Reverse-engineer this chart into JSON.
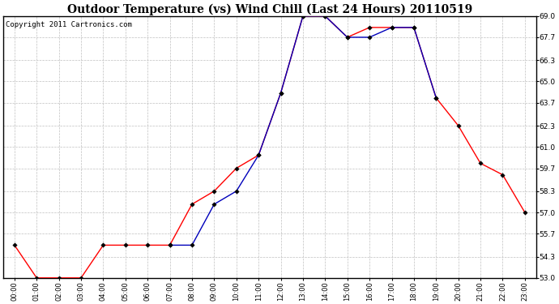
{
  "title": "Outdoor Temperature (vs) Wind Chill (Last 24 Hours) 20110519",
  "copyright_text": "Copyright 2011 Cartronics.com",
  "x_labels": [
    "00:00",
    "01:00",
    "02:00",
    "03:00",
    "04:00",
    "05:00",
    "06:00",
    "07:00",
    "08:00",
    "09:00",
    "10:00",
    "11:00",
    "12:00",
    "13:00",
    "14:00",
    "15:00",
    "16:00",
    "17:00",
    "18:00",
    "19:00",
    "20:00",
    "21:00",
    "22:00",
    "23:00"
  ],
  "y_ticks": [
    53.0,
    54.3,
    55.7,
    57.0,
    58.3,
    59.7,
    61.0,
    62.3,
    63.7,
    65.0,
    66.3,
    67.7,
    69.0
  ],
  "y_min": 53.0,
  "y_max": 69.0,
  "outdoor_temp": [
    55.0,
    53.0,
    53.0,
    53.0,
    55.0,
    55.0,
    55.0,
    55.0,
    57.5,
    58.3,
    59.7,
    60.5,
    64.3,
    69.0,
    69.0,
    67.7,
    68.3,
    68.3,
    68.3,
    64.0,
    62.3,
    60.0,
    59.3,
    57.0
  ],
  "wind_chill": [
    null,
    null,
    null,
    null,
    null,
    null,
    null,
    55.0,
    55.0,
    57.5,
    58.3,
    60.5,
    64.3,
    69.0,
    69.0,
    67.7,
    67.7,
    68.3,
    68.3,
    64.0,
    null,
    null,
    null,
    null
  ],
  "temp_color": "#ff0000",
  "windchill_color": "#0000bb",
  "bg_color": "#ffffff",
  "grid_color": "#c0c0c0",
  "title_fontsize": 10,
  "copyright_fontsize": 6.5,
  "fig_width": 6.9,
  "fig_height": 3.75,
  "dpi": 100
}
